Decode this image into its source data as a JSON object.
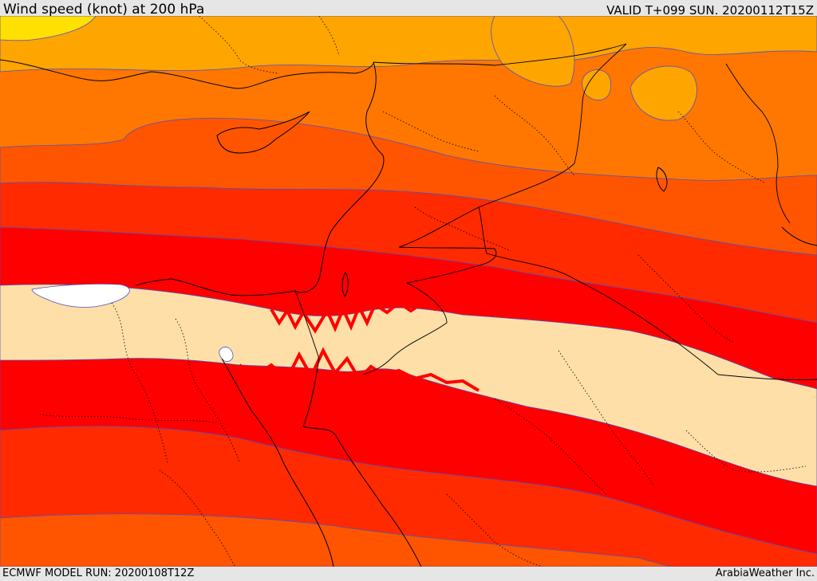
{
  "header": {
    "title": "Wind speed (knot) at 200 hPa",
    "valid": "VALID T+099 SUN. 20200112T15Z"
  },
  "footer": {
    "model_run": "ECMWF MODEL RUN: 20200108T12Z",
    "credit": "ArabiaWeather Inc."
  },
  "map": {
    "colors": {
      "band_yellow": "#ffe000",
      "band_light_orange": "#ffa500",
      "band_orange": "#ff7700",
      "band_dark_orange": "#ff5500",
      "band_red_orange": "#ff2a00",
      "band_red": "#ff0000",
      "band_core": "#ffdfa8",
      "band_white": "#ffffff",
      "contour_line": "#5050c0",
      "coastline": "#000000"
    }
  }
}
